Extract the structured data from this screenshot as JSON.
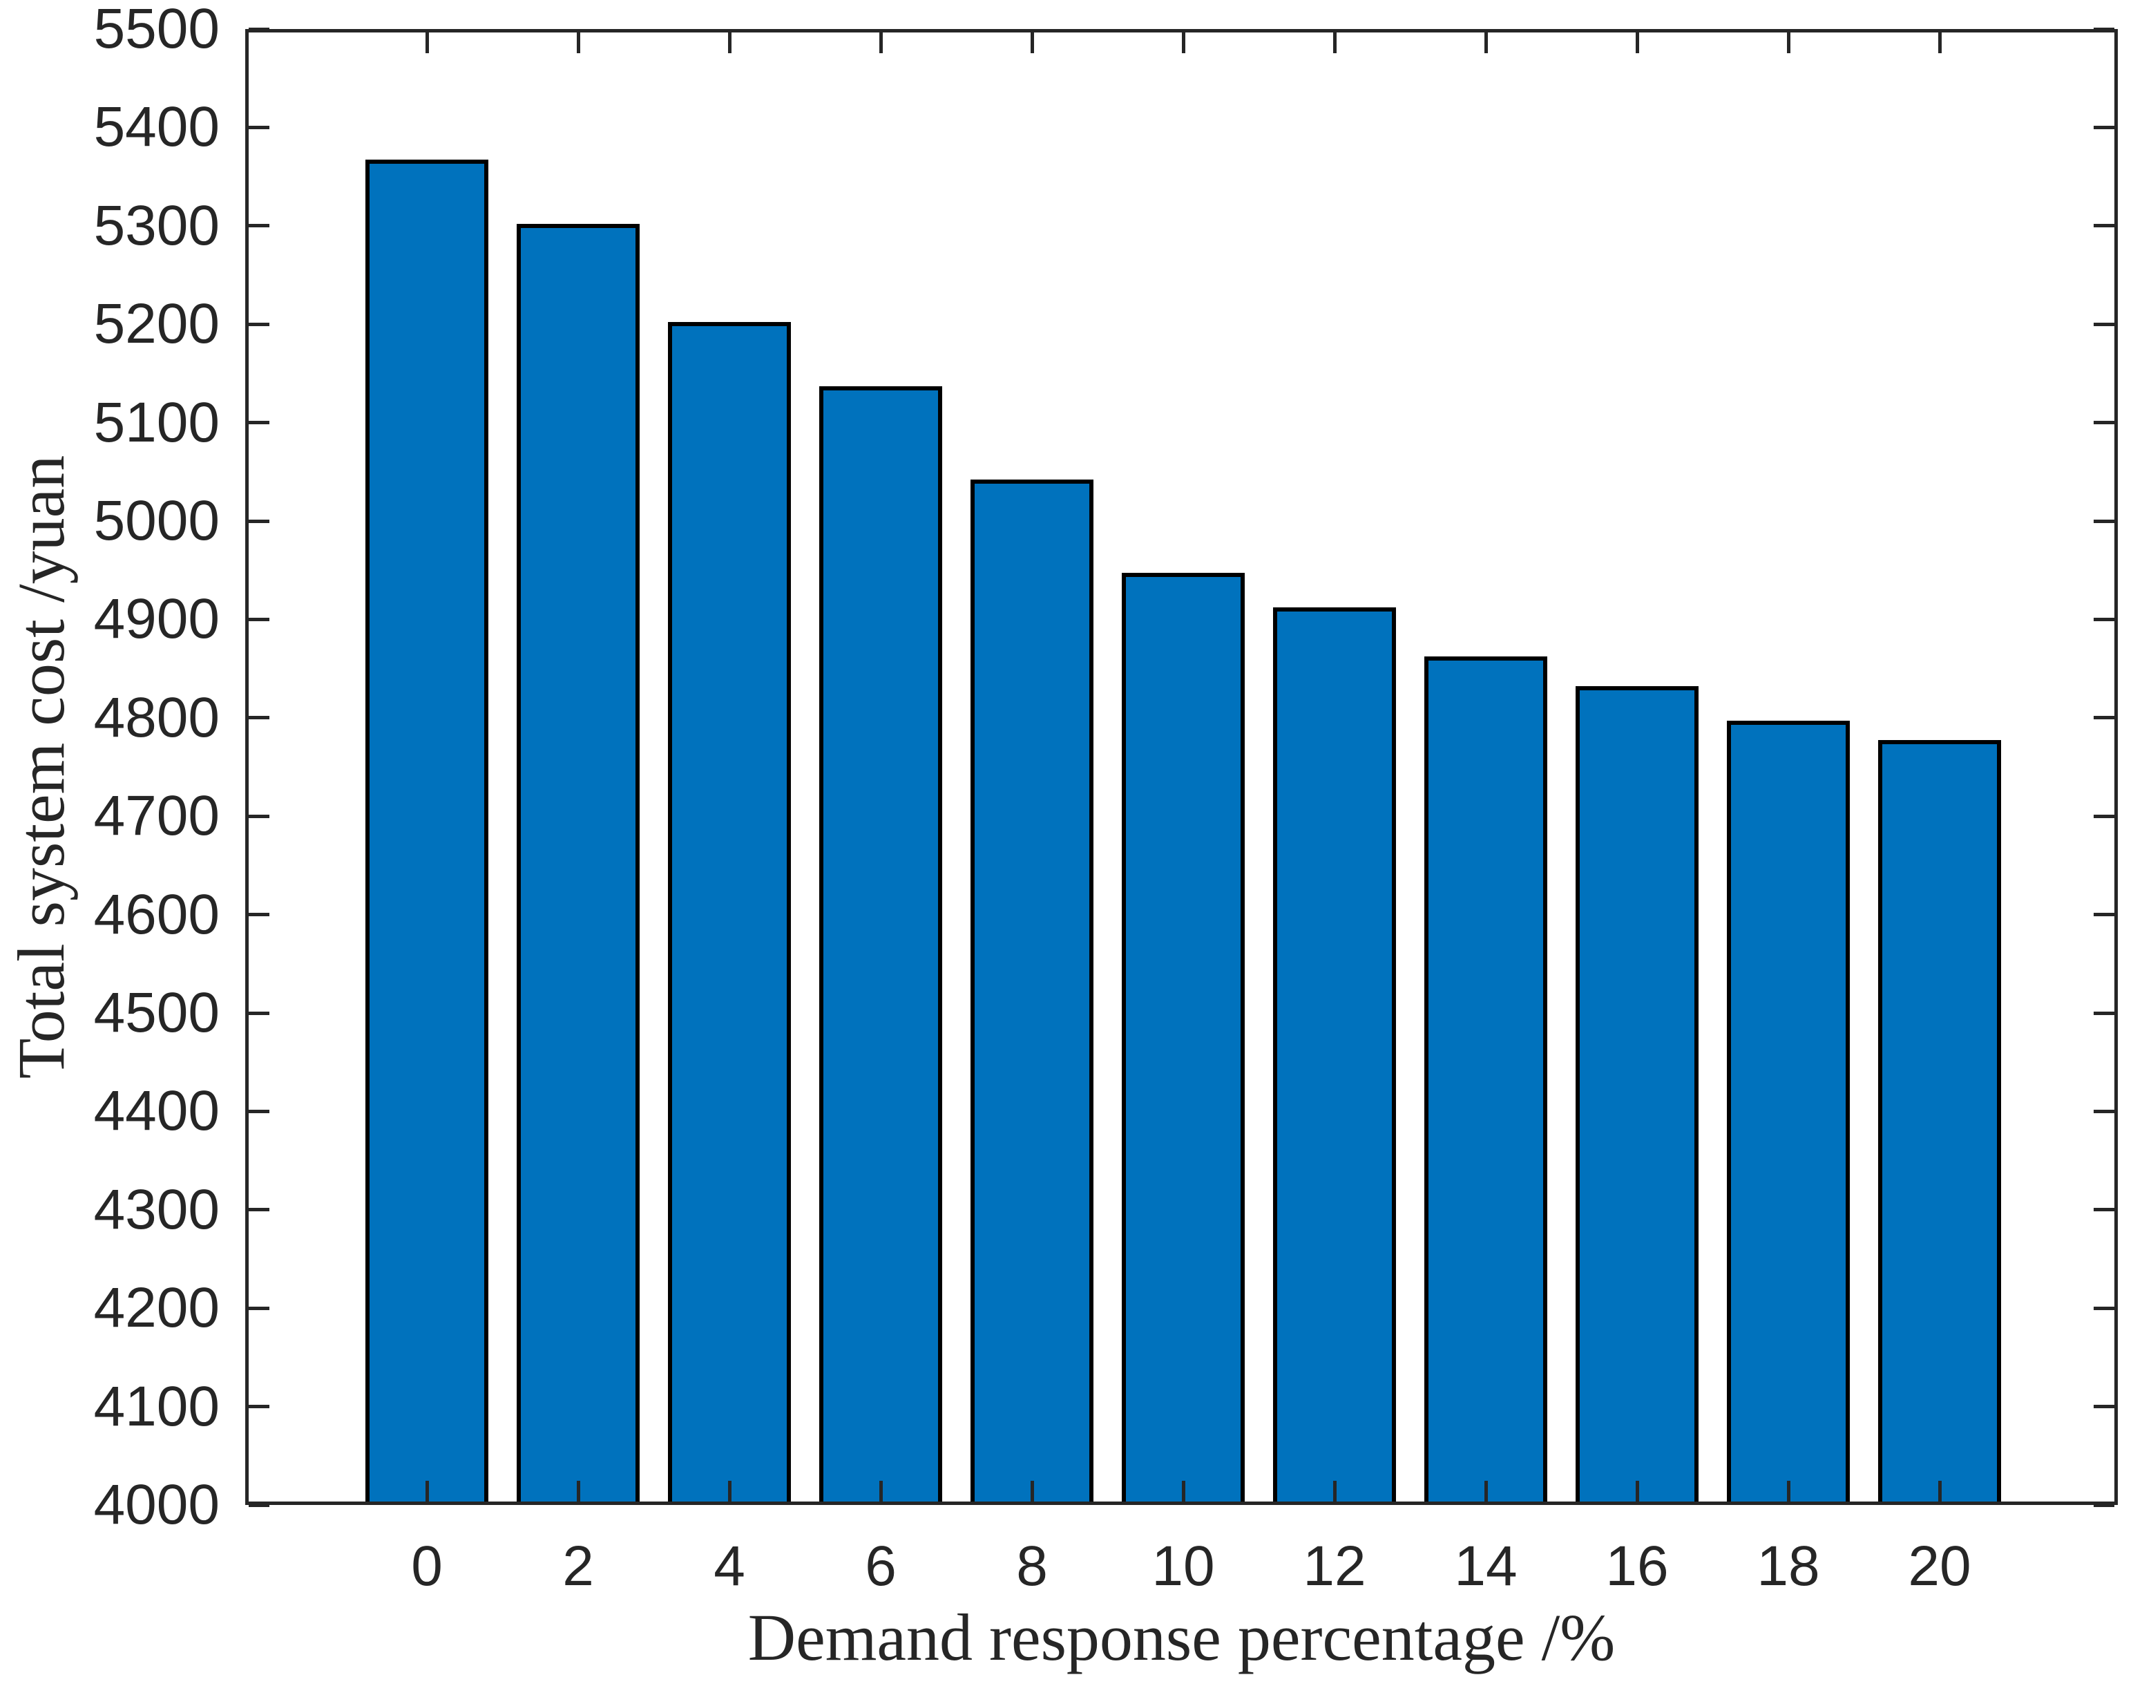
{
  "figure": {
    "background_color": "#ffffff"
  },
  "chart_data": {
    "type": "bar",
    "title": "",
    "categories": [
      "0",
      "2",
      "4",
      "6",
      "8",
      "10",
      "12",
      "14",
      "16",
      "18",
      "20"
    ],
    "values": [
      5365,
      5300,
      5200,
      5135,
      5040,
      4945,
      4910,
      4860,
      4830,
      4795,
      4775
    ],
    "xlabel": "Demand response percentage /%",
    "ylabel": "Total system cost /yuan",
    "ylim": [
      4000,
      5500
    ],
    "ytick_step": 100,
    "yticks": [
      4000,
      4100,
      4200,
      4300,
      4400,
      4500,
      4600,
      4700,
      4800,
      4900,
      5000,
      5100,
      5200,
      5300,
      5400,
      5500
    ],
    "grid": false,
    "legend": "none",
    "box": true,
    "tick_direction": "in",
    "bar_fill_color": "#0072BD",
    "bar_edge_color": "#000000",
    "axis_color": "#262626"
  }
}
